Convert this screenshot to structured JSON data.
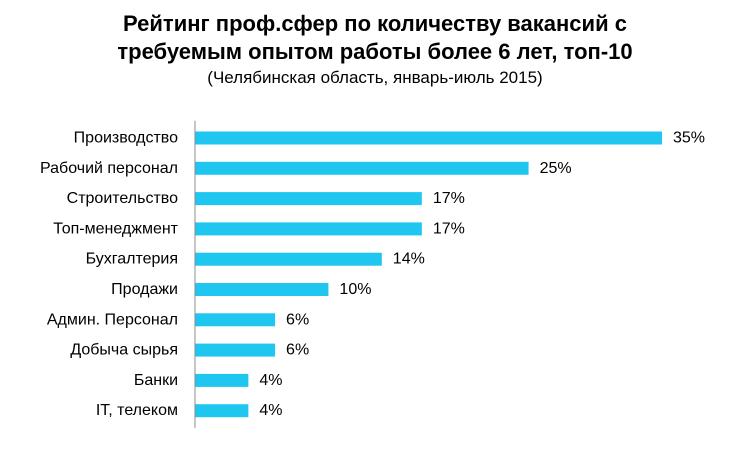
{
  "chart_data": {
    "type": "bar",
    "orientation": "horizontal",
    "title_lines": [
      "Рейтинг проф.сфер по количеству вакансий с",
      "требуемым опытом работы более 6 лет, топ-10"
    ],
    "subtitle": "(Челябинская область, январь-июль 2015)",
    "categories": [
      "Производство",
      "Рабочий персонал",
      "Строительство",
      "Топ-менеджмент",
      "Бухгалтерия",
      "Продажи",
      "Админ. Персонал",
      "Добыча сырья",
      "Банки",
      "IT, телеком"
    ],
    "values": [
      35,
      25,
      17,
      17,
      14,
      10,
      6,
      6,
      4,
      4
    ],
    "value_labels": [
      "35%",
      "25%",
      "17%",
      "17%",
      "14%",
      "10%",
      "6%",
      "6%",
      "4%",
      "4%"
    ],
    "xlabel": "",
    "ylabel": "",
    "xlim": [
      0,
      35
    ],
    "grid": false,
    "legend": "none",
    "bar_color": "#1EC6F0"
  }
}
